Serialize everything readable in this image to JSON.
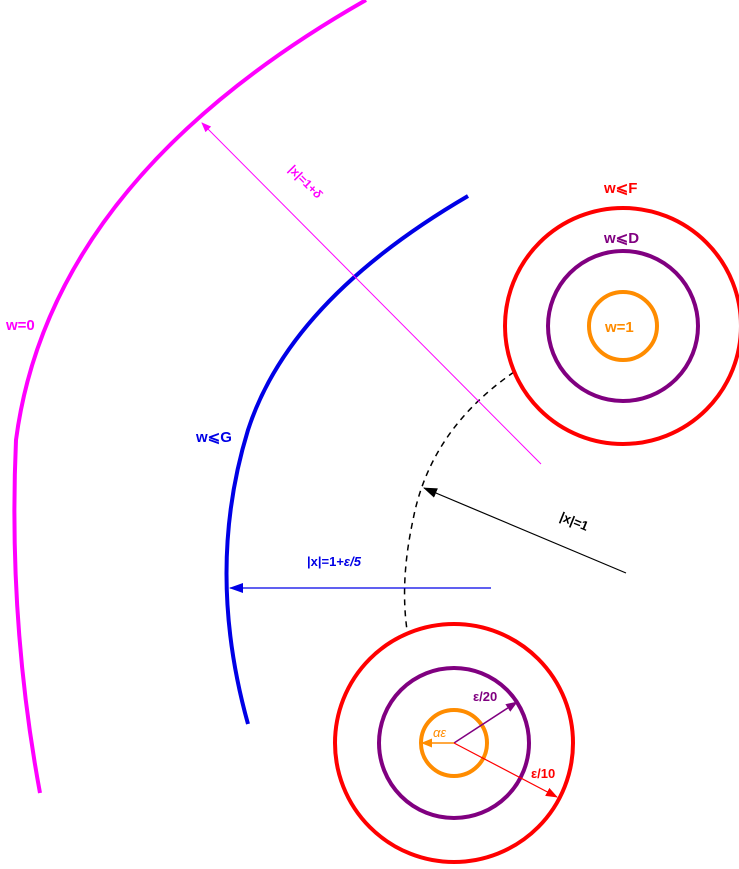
{
  "colors": {
    "magenta": "#ff00ff",
    "blue": "#0000e6",
    "red": "#ff0000",
    "purple": "#800080",
    "orange": "#ff8c00",
    "black": "#000000"
  },
  "labels": {
    "w_zero": "w=0",
    "w_le_G": "w⩽G",
    "w_le_F": "w⩽F",
    "w_le_D": "w⩽D",
    "w_one": "w=1",
    "radius_delta_x": "|x|=1+",
    "radius_delta_sym": "δ",
    "radius_eps5_x": "|x|=1+",
    "radius_eps5_sym": "ε/5",
    "radius_one": "|x|=1",
    "eps_over_20": "ε/20",
    "eps_over_10": "ε/10",
    "alpha_eps": "αε"
  }
}
